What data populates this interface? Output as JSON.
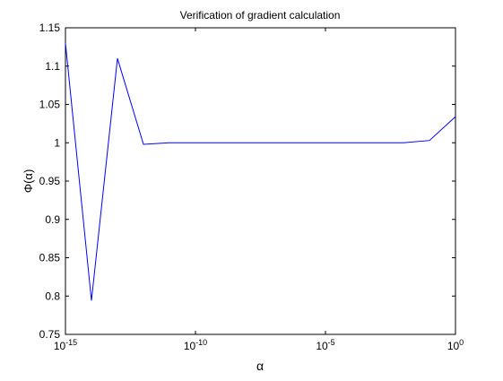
{
  "chart_data": {
    "type": "line",
    "title": "Verification of gradient calculation",
    "xlabel": "α",
    "ylabel": "Φ(α)",
    "x_scale": "log",
    "xlim": [
      1e-15,
      1
    ],
    "ylim": [
      0.75,
      1.15
    ],
    "grid": false,
    "x_ticks": [
      {
        "value": 1e-15,
        "base": "10",
        "exp": "-15"
      },
      {
        "value": 1e-10,
        "base": "10",
        "exp": "-10"
      },
      {
        "value": 1e-05,
        "base": "10",
        "exp": "-5"
      },
      {
        "value": 1,
        "base": "10",
        "exp": "0"
      }
    ],
    "y_ticks": [
      {
        "value": 0.75,
        "label": "0.75"
      },
      {
        "value": 0.8,
        "label": "0.8"
      },
      {
        "value": 0.85,
        "label": "0.85"
      },
      {
        "value": 0.9,
        "label": "0.9"
      },
      {
        "value": 0.95,
        "label": "0.95"
      },
      {
        "value": 1.0,
        "label": "1"
      },
      {
        "value": 1.05,
        "label": "1.05"
      },
      {
        "value": 1.1,
        "label": "1.1"
      },
      {
        "value": 1.15,
        "label": "1.15"
      }
    ],
    "series": [
      {
        "color": "#0000ff",
        "points": [
          {
            "x": 1e-15,
            "y": 1.13
          },
          {
            "x": 1e-14,
            "y": 0.794
          },
          {
            "x": 1e-13,
            "y": 1.11
          },
          {
            "x": 1e-12,
            "y": 0.998
          },
          {
            "x": 1e-11,
            "y": 1.0
          },
          {
            "x": 1e-10,
            "y": 1.0
          },
          {
            "x": 1e-09,
            "y": 1.0
          },
          {
            "x": 1e-08,
            "y": 1.0
          },
          {
            "x": 1e-07,
            "y": 1.0
          },
          {
            "x": 1e-06,
            "y": 1.0
          },
          {
            "x": 1e-05,
            "y": 1.0
          },
          {
            "x": 0.0001,
            "y": 1.0
          },
          {
            "x": 0.001,
            "y": 1.0
          },
          {
            "x": 0.01,
            "y": 1.0
          },
          {
            "x": 0.1,
            "y": 1.003
          },
          {
            "x": 1,
            "y": 1.034
          }
        ]
      }
    ]
  }
}
